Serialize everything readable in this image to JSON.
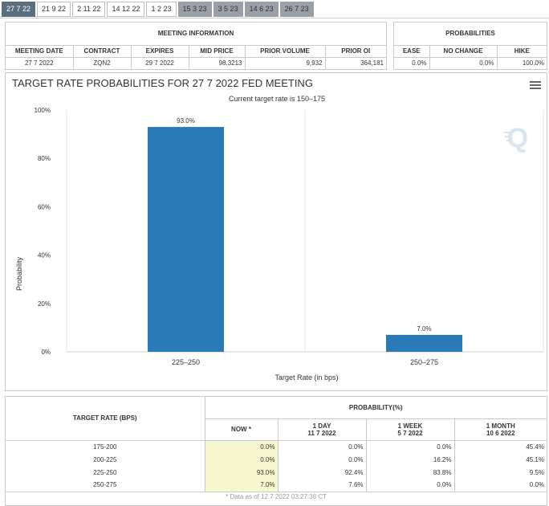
{
  "tabs": [
    "27 7 22",
    "21 9 22",
    "2 11 22",
    "14 12 22",
    "1 2 23",
    "15 3 23",
    "3 5 23",
    "14 6 23",
    "26 7 23"
  ],
  "meeting_info": {
    "title": "MEETING INFORMATION",
    "headers": [
      "MEETING DATE",
      "CONTRACT",
      "EXPIRES",
      "MID PRICE",
      "PRIOR VOLUME",
      "PRIOR OI"
    ],
    "values": [
      "27 7 2022",
      "ZQN2",
      "29 7 2022",
      "98.3213",
      "9,932",
      "364,181"
    ]
  },
  "probabilities_panel": {
    "title": "PROBABILITIES",
    "headers": [
      "EASE",
      "NO CHANGE",
      "HIKE"
    ],
    "values": [
      "0.0%",
      "0.0%",
      "100.0%"
    ]
  },
  "chart_data": {
    "type": "bar",
    "title": "TARGET RATE PROBABILITIES FOR 27 7 2022 FED MEETING",
    "subtitle": "Current target rate is 150–175",
    "categories": [
      "225–250",
      "250–275"
    ],
    "values": [
      93.0,
      7.0
    ],
    "data_labels": [
      "93.0%",
      "7.0%"
    ],
    "xlabel": "Target Rate (in bps)",
    "ylabel": "Probability",
    "ylim": [
      0,
      100
    ],
    "yticks": [
      0,
      20,
      40,
      60,
      80,
      100
    ],
    "ytick_labels": [
      "0%",
      "20%",
      "40%",
      "60%",
      "80%",
      "100%"
    ],
    "bar_color": "#2a7ab8",
    "grid": true
  },
  "prob_table": {
    "row_header": "TARGET RATE (BPS)",
    "group_header": "PROBABILITY(%)",
    "columns": [
      {
        "line1": "NOW *",
        "line2": ""
      },
      {
        "line1": "1 DAY",
        "line2": "11 7 2022"
      },
      {
        "line1": "1 WEEK",
        "line2": "5 7 2022"
      },
      {
        "line1": "1 MONTH",
        "line2": "10 6 2022"
      }
    ],
    "rows": [
      {
        "rate": "175-200",
        "now": "0.0%",
        "day": "0.0%",
        "week": "0.0%",
        "month": "45.4%"
      },
      {
        "rate": "200-225",
        "now": "0.0%",
        "day": "0.0%",
        "week": "16.2%",
        "month": "45.1%"
      },
      {
        "rate": "225-250",
        "now": "93.0%",
        "day": "92.4%",
        "week": "83.8%",
        "month": "9.5%"
      },
      {
        "rate": "250-275",
        "now": "7.0%",
        "day": "7.6%",
        "week": "0.0%",
        "month": "0.0%"
      }
    ],
    "footnote": "* Data as of 12 7 2022 03:27:36 CT"
  }
}
